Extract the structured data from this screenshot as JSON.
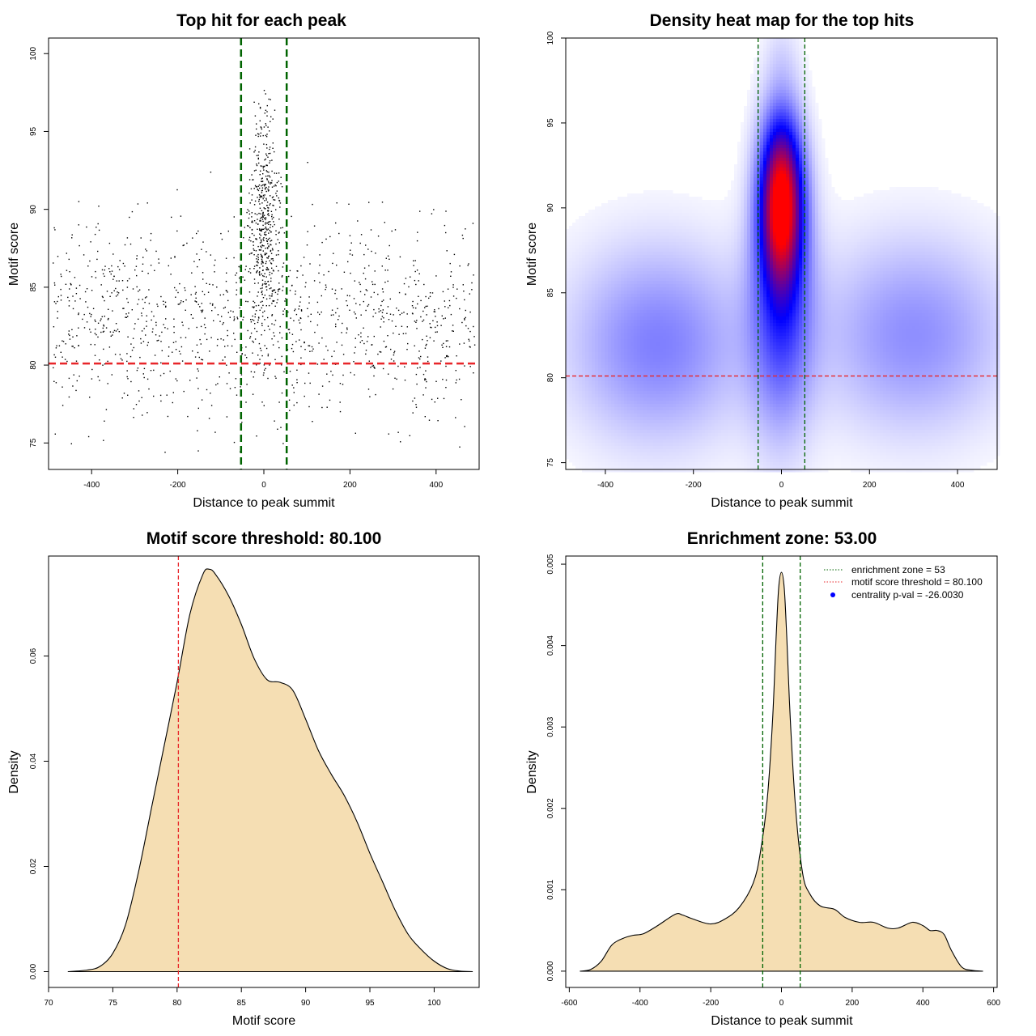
{
  "colors": {
    "threshold_line": "#e8262a",
    "zone_line": "#006400",
    "density_fill": "#f5deb3",
    "density_outline": "#000000",
    "heat_low": "#ffffff",
    "heat_mid": "#0000ff",
    "heat_high": "#ff0000",
    "points": "#000000",
    "legend_dot": "#0000ff"
  },
  "chart_data": [
    {
      "id": "scatter",
      "type": "scatter",
      "title": "Top hit for each peak",
      "xlabel": "Distance to peak summit",
      "ylabel": "Motif score",
      "xlim": [
        -500,
        500
      ],
      "ylim": [
        73.3,
        101
      ],
      "xticks": [
        "-400",
        "-200",
        "0",
        "200",
        "400"
      ],
      "yticks": [
        "75",
        "80",
        "85",
        "90",
        "95",
        "100"
      ],
      "n_points_approx": 1700,
      "distribution": {
        "central_cluster": {
          "x_center": 0,
          "x_sd": 18,
          "y_mean": 89,
          "y_sd": 3.5,
          "share": 0.3
        },
        "background": {
          "x_range": [
            -490,
            490
          ],
          "y_mean": 83,
          "y_sd": 3.2,
          "share": 0.7
        }
      },
      "hlines": [
        {
          "y": 80.1,
          "role": "motif score threshold"
        }
      ],
      "vlines": [
        {
          "x": -53
        },
        {
          "x": 53
        }
      ],
      "grid": false
    },
    {
      "id": "heatmap",
      "type": "heatmap",
      "title": "Density heat map for the top hits",
      "xlabel": "Distance to peak summit",
      "ylabel": "Motif score",
      "xlim": [
        -490,
        490
      ],
      "ylim": [
        74.6,
        100
      ],
      "xticks": [
        "-400",
        "-200",
        "0",
        "200",
        "400"
      ],
      "yticks": [
        "75",
        "80",
        "85",
        "90",
        "95",
        "100"
      ],
      "density_components": [
        {
          "x": 0,
          "y": 90.5,
          "sx": 34,
          "sy": 3.4,
          "w": 1.0
        },
        {
          "x": 0,
          "y": 84,
          "sx": 50,
          "sy": 5,
          "w": 0.33
        },
        {
          "x": -280,
          "y": 82,
          "sx": 140,
          "sy": 4,
          "w": 0.25
        },
        {
          "x": 300,
          "y": 82.5,
          "sx": 150,
          "sy": 4,
          "w": 0.22
        },
        {
          "x": 0,
          "y": 99,
          "sx": 30,
          "sy": 1.6,
          "w": 0.05
        }
      ],
      "hlines": [
        {
          "y": 80.1
        }
      ],
      "vlines": [
        {
          "x": -53
        },
        {
          "x": 53
        }
      ],
      "grid": false
    },
    {
      "id": "score-density",
      "type": "area",
      "title": "Motif score threshold: 80.100",
      "xlabel": "Motif score",
      "ylabel": "Density",
      "xlim": [
        70,
        103.5
      ],
      "ylim": [
        -0.003,
        0.079
      ],
      "xticks": [
        "70",
        "75",
        "80",
        "85",
        "90",
        "95",
        "100"
      ],
      "yticks": [
        "0.00",
        "0.02",
        "0.04",
        "0.06"
      ],
      "x": [
        71.5,
        73,
        74,
        75,
        76,
        77,
        78,
        79,
        80,
        81,
        82,
        82.5,
        83,
        84,
        85,
        86,
        87,
        88,
        89,
        90,
        91,
        92,
        93,
        94,
        95,
        96,
        97,
        98,
        99,
        100,
        101,
        102,
        103
      ],
      "y": [
        0.0,
        0.0003,
        0.001,
        0.0035,
        0.009,
        0.019,
        0.031,
        0.043,
        0.055,
        0.068,
        0.0755,
        0.0765,
        0.0755,
        0.0715,
        0.066,
        0.0595,
        0.0555,
        0.055,
        0.0535,
        0.048,
        0.042,
        0.0375,
        0.0335,
        0.0285,
        0.0225,
        0.017,
        0.0115,
        0.007,
        0.0042,
        0.002,
        0.0006,
        0.0001,
        0.0
      ],
      "vlines": [
        {
          "x": 80.1
        }
      ],
      "grid": false
    },
    {
      "id": "distance-density",
      "type": "area",
      "title": "Enrichment zone: 53.00",
      "xlabel": "Distance to peak summit",
      "ylabel": "Density",
      "xlim": [
        -610,
        610
      ],
      "ylim": [
        -0.0002,
        0.0051
      ],
      "xticks": [
        "-600",
        "-400",
        "-200",
        "0",
        "200",
        "400",
        "600"
      ],
      "yticks": [
        "0.000",
        "0.001",
        "0.002",
        "0.003",
        "0.004",
        "0.005"
      ],
      "x": [
        -570,
        -540,
        -510,
        -480,
        -450,
        -420,
        -390,
        -350,
        -300,
        -280,
        -250,
        -200,
        -160,
        -120,
        -80,
        -60,
        -40,
        -25,
        -15,
        -8,
        0,
        8,
        15,
        25,
        40,
        60,
        80,
        110,
        150,
        180,
        220,
        260,
        300,
        330,
        370,
        400,
        420,
        440,
        460,
        480,
        510,
        540,
        570
      ],
      "y": [
        0.0,
        2e-05,
        0.00012,
        0.00032,
        0.0004,
        0.00044,
        0.00046,
        0.00056,
        0.0007,
        0.00069,
        0.00064,
        0.00058,
        0.00064,
        0.00078,
        0.00108,
        0.00145,
        0.00212,
        0.0031,
        0.0041,
        0.0047,
        0.0049,
        0.0047,
        0.0041,
        0.0031,
        0.002,
        0.0012,
        0.00095,
        0.0008,
        0.00076,
        0.00066,
        0.0006,
        0.0006,
        0.00053,
        0.00053,
        0.0006,
        0.00056,
        0.0005,
        0.0005,
        0.00045,
        0.00026,
        5e-05,
        1e-05,
        0.0
      ],
      "vlines": [
        {
          "x": -53
        },
        {
          "x": 53
        }
      ],
      "legend": {
        "position": "top-right",
        "entries": [
          {
            "label": "enrichment zone = 53",
            "kind": "dotted-line",
            "color": "#006400"
          },
          {
            "label": "motif score threshold = 80.100",
            "kind": "dotted-line",
            "color": "#e8262a"
          },
          {
            "label": "centrality p-val = -26.0030",
            "kind": "point",
            "color": "#0000ff"
          }
        ]
      },
      "grid": false
    }
  ]
}
